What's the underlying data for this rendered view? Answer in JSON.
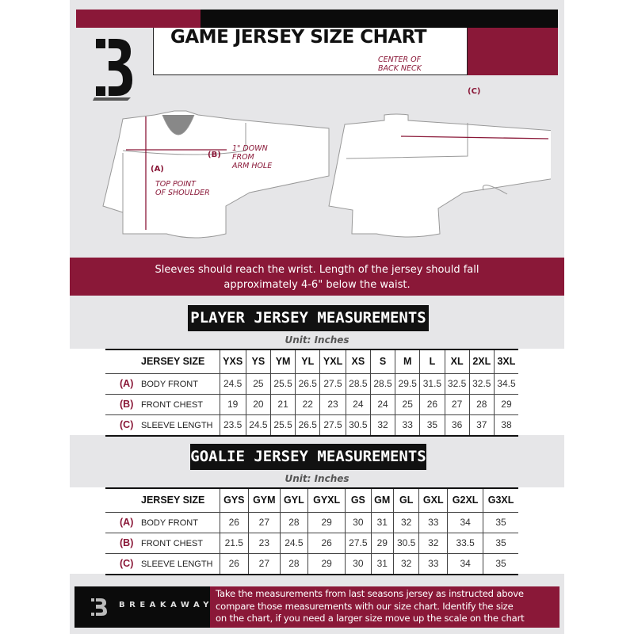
{
  "header": {
    "title": "GAME JERSEY SIZE CHART",
    "logo_letter": "B"
  },
  "diagram": {
    "labels": {
      "a": "(A)",
      "b": "(B)",
      "c": "(C)",
      "top_point": [
        "TOP POINT",
        "OF SHOULDER"
      ],
      "one_inch": [
        "1\" DOWN",
        "FROM",
        "ARM HOLE"
      ],
      "center_back": [
        "CENTER OF",
        "BACK NECK"
      ]
    }
  },
  "instructions": [
    "Sleeves should reach the wrist. Length of the jersey should fall",
    "approximately 4-6\" below the waist."
  ],
  "player": {
    "title": "PLAYER JERSEY MEASUREMENTS",
    "unit": "Unit: Inches",
    "header_label": "JERSEY SIZE",
    "sizes": [
      "YXS",
      "YS",
      "YM",
      "YL",
      "YXL",
      "XS",
      "S",
      "M",
      "L",
      "XL",
      "2XL",
      "3XL"
    ],
    "rows": [
      {
        "key": "(A)",
        "label": "BODY FRONT",
        "values": [
          "24.5",
          "25",
          "25.5",
          "26.5",
          "27.5",
          "28.5",
          "28.5",
          "29.5",
          "31.5",
          "32.5",
          "32.5",
          "34.5"
        ]
      },
      {
        "key": "(B)",
        "label": "FRONT CHEST",
        "values": [
          "19",
          "20",
          "21",
          "22",
          "23",
          "24",
          "24",
          "25",
          "26",
          "27",
          "28",
          "29"
        ]
      },
      {
        "key": "(C)",
        "label": "SLEEVE LENGTH",
        "values": [
          "23.5",
          "24.5",
          "25.5",
          "26.5",
          "27.5",
          "30.5",
          "32",
          "33",
          "35",
          "36",
          "37",
          "38"
        ]
      }
    ]
  },
  "goalie": {
    "title": "GOALIE JERSEY MEASUREMENTS",
    "unit": "Unit: Inches",
    "header_label": "JERSEY SIZE",
    "sizes": [
      "GYS",
      "GYM",
      "GYL",
      "GYXL",
      "GS",
      "GM",
      "GL",
      "GXL",
      "G2XL",
      "G3XL"
    ],
    "rows": [
      {
        "key": "(A)",
        "label": "BODY FRONT",
        "values": [
          "26",
          "27",
          "28",
          "29",
          "30",
          "31",
          "32",
          "33",
          "34",
          "35"
        ]
      },
      {
        "key": "(B)",
        "label": "FRONT CHEST",
        "values": [
          "21.5",
          "23",
          "24.5",
          "26",
          "27.5",
          "29",
          "30.5",
          "32",
          "33.5",
          "35"
        ]
      },
      {
        "key": "(C)",
        "label": "SLEEVE LENGTH",
        "values": [
          "26",
          "27",
          "28",
          "29",
          "30",
          "31",
          "32",
          "33",
          "34",
          "35"
        ]
      }
    ]
  },
  "footer": {
    "brand": "BREAKAWAY",
    "text": [
      "Take the measurements from last seasons jersey as instructed above",
      "compare those measurements  with our size chart. Identify the size",
      "on the chart, if you need a larger size move up the scale on the chart"
    ]
  },
  "colors": {
    "maroon": "#8a1838",
    "black": "#111111",
    "panel": "#e6e6e8"
  }
}
